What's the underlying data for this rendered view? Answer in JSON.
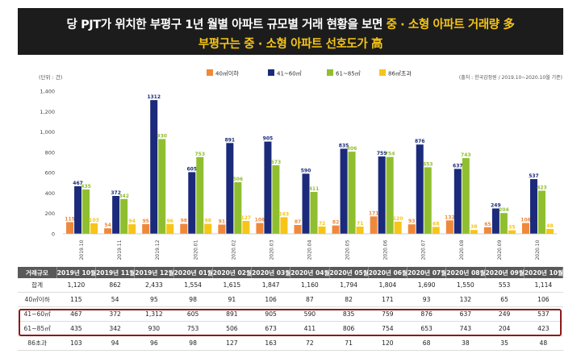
{
  "banner": {
    "line1_pre": "당 PJT가 위치한 부평구 1년 월별 아파트 규모별 거래 현황을 보면 ",
    "line1_hl": "중 · 소형 아파트 거래량 多",
    "line2": "부평구는 중 · 소형 아파트 선호도가 高"
  },
  "colors": {
    "series": [
      "#f0883a",
      "#1b2a7a",
      "#8fbf2f",
      "#f6c518"
    ],
    "banner_bg": "#1c1c1c",
    "highlight": "#f6c518",
    "table_header": "#595959",
    "box": "#8b1a1a"
  },
  "chart_data": {
    "type": "bar",
    "unit_label": "(단위 : 건)",
    "source_note": "(출처 : 한국감정원 / 2019.10~2020.10월 기준)",
    "categories": [
      "2019.10",
      "2019.11",
      "2019.12",
      "2020.01",
      "2020.02",
      "2020.03",
      "2020.04",
      "2020.05",
      "2020.06",
      "2020.07",
      "2020.08",
      "2020.09",
      "2020.10"
    ],
    "ylim": [
      0,
      1400
    ],
    "yticks": [
      "0",
      "200",
      "400",
      "600",
      "800",
      "1,000",
      "1,200",
      "1,400"
    ],
    "grid": false,
    "legend_position": "top-center",
    "series": [
      {
        "name": "40㎡이하",
        "values": [
          115,
          54,
          95,
          98,
          91,
          106,
          87,
          82,
          171,
          93,
          132,
          65,
          106
        ]
      },
      {
        "name": "41~60㎡",
        "values": [
          467,
          372,
          1312,
          605,
          891,
          905,
          590,
          835,
          759,
          876,
          637,
          249,
          537
        ]
      },
      {
        "name": "61~85㎡",
        "values": [
          435,
          342,
          930,
          753,
          506,
          673,
          411,
          806,
          754,
          653,
          743,
          204,
          423
        ]
      },
      {
        "name": "86㎡초과",
        "values": [
          103,
          94,
          96,
          98,
          127,
          163,
          72,
          71,
          120,
          68,
          38,
          35,
          48
        ]
      }
    ]
  },
  "table": {
    "header": [
      "거래규모",
      "2019년 10월",
      "2019년 11월",
      "2019년 12월",
      "2020년 01월",
      "2020년 02월",
      "2020년 03월",
      "2020년 04월",
      "2020년 05월",
      "2020년 06월",
      "2020년 07월",
      "2020년 08월",
      "2020년 09월",
      "2020년 10월"
    ],
    "rows": [
      [
        "합계",
        "1,120",
        "862",
        "2,433",
        "1,554",
        "1,615",
        "1,847",
        "1,160",
        "1,794",
        "1,804",
        "1,690",
        "1,550",
        "553",
        "1,114"
      ],
      [
        "40㎡이하",
        "115",
        "54",
        "95",
        "98",
        "91",
        "106",
        "87",
        "82",
        "171",
        "93",
        "132",
        "65",
        "106"
      ],
      [
        "41~60㎡",
        "467",
        "372",
        "1,312",
        "605",
        "891",
        "905",
        "590",
        "835",
        "759",
        "876",
        "637",
        "249",
        "537"
      ],
      [
        "61~85㎡",
        "435",
        "342",
        "930",
        "753",
        "506",
        "673",
        "411",
        "806",
        "754",
        "653",
        "743",
        "204",
        "423"
      ],
      [
        "86초과",
        "103",
        "94",
        "96",
        "98",
        "127",
        "163",
        "72",
        "71",
        "120",
        "68",
        "38",
        "35",
        "48"
      ]
    ]
  }
}
